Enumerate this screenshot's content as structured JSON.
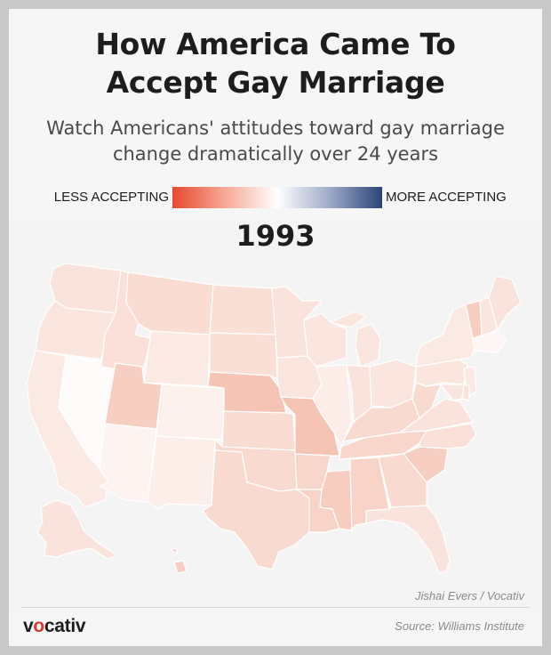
{
  "title": {
    "line1": "How America Came To",
    "line2": "Accept Gay Marriage"
  },
  "subtitle": {
    "line1": "Watch Americans' attitudes toward gay marriage",
    "line2": "change dramatically over 24 years"
  },
  "legend": {
    "left_label": "LESS ACCEPTING",
    "right_label": "MORE ACCEPTING",
    "colors": [
      "#e8482f",
      "#f6a896",
      "#ffffff",
      "#9eaac8",
      "#2c4478"
    ]
  },
  "year": "1993",
  "credit": "Jishai Evers / Vocativ",
  "source": "Source: Williams Institute",
  "brand": {
    "before": "v",
    "o": "o",
    "after": "cativ"
  },
  "colors": {
    "background": "#f5f6f5",
    "outer": "#c9c9c9",
    "state_border": "#ffffff",
    "brand_accent": "#d9382e"
  },
  "map_data": {
    "type": "choropleth",
    "scale_min_color": "#e8482f",
    "scale_mid_color": "#ffffff",
    "scale_max_color": "#2c4478",
    "states": [
      {
        "id": "WA",
        "fill": "#fae3dc"
      },
      {
        "id": "OR",
        "fill": "#fbe6df"
      },
      {
        "id": "CA",
        "fill": "#fbe9e3"
      },
      {
        "id": "NV",
        "fill": "#fefcfb"
      },
      {
        "id": "ID",
        "fill": "#fae0d8"
      },
      {
        "id": "MT",
        "fill": "#f9dcd2"
      },
      {
        "id": "WY",
        "fill": "#fbe9e3"
      },
      {
        "id": "UT",
        "fill": "#f7cfc2"
      },
      {
        "id": "AZ",
        "fill": "#fdf4f1"
      },
      {
        "id": "CO",
        "fill": "#fdf1ed"
      },
      {
        "id": "NM",
        "fill": "#fcefea"
      },
      {
        "id": "ND",
        "fill": "#fadfd6"
      },
      {
        "id": "SD",
        "fill": "#fadfd6"
      },
      {
        "id": "NE",
        "fill": "#f5c4b5"
      },
      {
        "id": "KS",
        "fill": "#f9dcd2"
      },
      {
        "id": "OK",
        "fill": "#f9dad0"
      },
      {
        "id": "TX",
        "fill": "#f9dad0"
      },
      {
        "id": "MN",
        "fill": "#fae3dc"
      },
      {
        "id": "IA",
        "fill": "#fbe6df"
      },
      {
        "id": "MO",
        "fill": "#f5c4b5"
      },
      {
        "id": "AR",
        "fill": "#f8d6cb"
      },
      {
        "id": "LA",
        "fill": "#f8d3c7"
      },
      {
        "id": "WI",
        "fill": "#fbe6df"
      },
      {
        "id": "IL",
        "fill": "#fcede8"
      },
      {
        "id": "MS",
        "fill": "#f7cdbf"
      },
      {
        "id": "MI",
        "fill": "#fbe6df"
      },
      {
        "id": "IN",
        "fill": "#fae3dc"
      },
      {
        "id": "OH",
        "fill": "#fbe6df"
      },
      {
        "id": "KY",
        "fill": "#f9dad0"
      },
      {
        "id": "TN",
        "fill": "#f8d6cb"
      },
      {
        "id": "AL",
        "fill": "#f8d3c7"
      },
      {
        "id": "GA",
        "fill": "#f9dad0"
      },
      {
        "id": "FL",
        "fill": "#fae3dc"
      },
      {
        "id": "SC",
        "fill": "#f7cfc2"
      },
      {
        "id": "NC",
        "fill": "#fae0d8"
      },
      {
        "id": "VA",
        "fill": "#fae3dc"
      },
      {
        "id": "WV",
        "fill": "#f9dad0"
      },
      {
        "id": "PA",
        "fill": "#fbe6df"
      },
      {
        "id": "NY",
        "fill": "#fbe9e3"
      },
      {
        "id": "VT",
        "fill": "#f7cdbf"
      },
      {
        "id": "NH",
        "fill": "#fbe6df"
      },
      {
        "id": "ME",
        "fill": "#fae3dc"
      },
      {
        "id": "MA",
        "fill": "#fdf6f4"
      },
      {
        "id": "NJ",
        "fill": "#fbe9e3"
      },
      {
        "id": "DE",
        "fill": "#fae3dc"
      },
      {
        "id": "MD",
        "fill": "#fbe6df"
      },
      {
        "id": "AK",
        "fill": "#fae3dc"
      },
      {
        "id": "HI",
        "fill": "#f7cdbf"
      }
    ]
  }
}
